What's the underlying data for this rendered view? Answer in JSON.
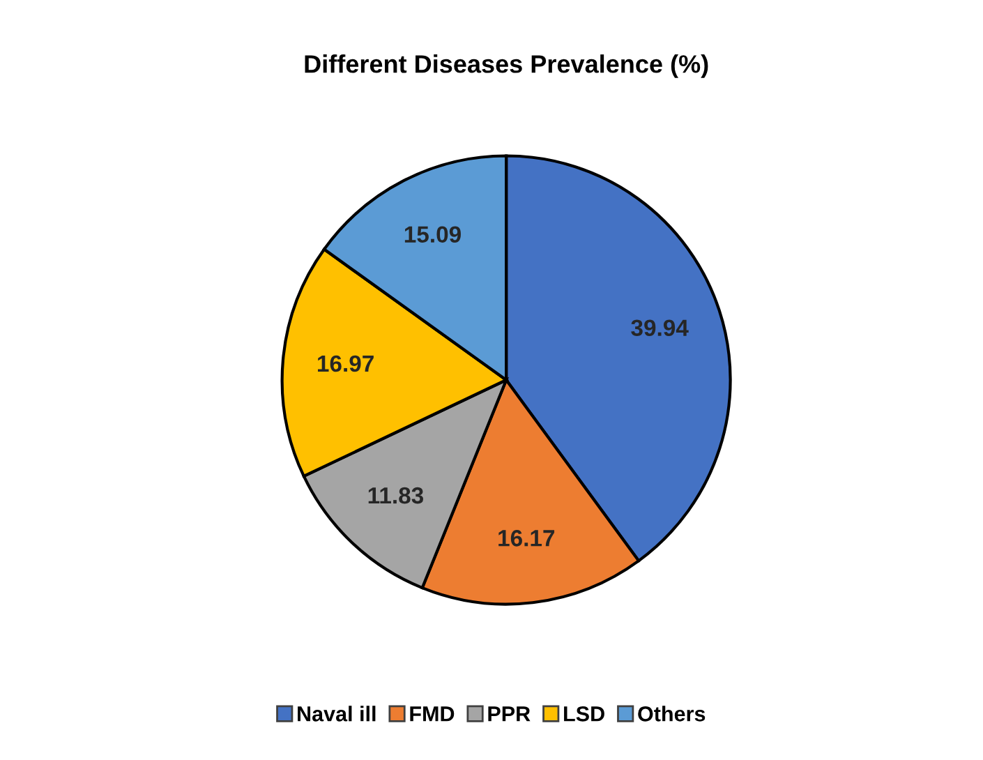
{
  "chart_data": {
    "type": "pie",
    "title": "Different Diseases Prevalence (%)",
    "categories": [
      "Naval ill",
      "FMD",
      "PPR",
      "LSD",
      "Others"
    ],
    "values": [
      39.94,
      16.17,
      11.83,
      16.97,
      15.09
    ],
    "colors": [
      "#4472c4",
      "#ed7d31",
      "#a5a5a5",
      "#ffc000",
      "#5b9bd5"
    ],
    "data_labels": true,
    "legend": "bottom"
  }
}
